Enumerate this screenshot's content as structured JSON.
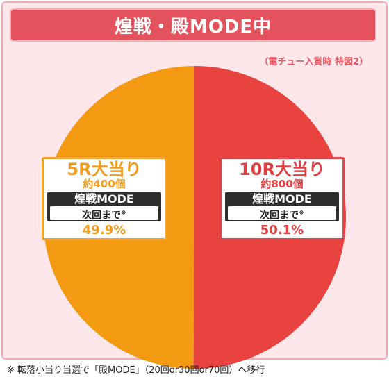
{
  "title": "煌戦・殿MODE中",
  "note": "（電チュー入賞時 特図2）",
  "footnote": "※ 転落小当り当選で「殿MODE」（20回or30回or70回）へ移行",
  "colors": {
    "accent": "#e4525d",
    "left_slice": "#f39a12",
    "right_slice": "#e8433f",
    "background": "#fde7ea"
  },
  "chart_data": {
    "type": "pie",
    "title": "煌戦・殿MODE中",
    "slices": [
      {
        "round": "5R大当り",
        "balls": "約400個",
        "mode": "煌戦MODE",
        "continue": "次回まで",
        "continue_mark": "※",
        "percent_label": "49.9%",
        "value": 49.9,
        "color": "#f39a12"
      },
      {
        "round": "10R大当り",
        "balls": "約800個",
        "mode": "煌戦MODE",
        "continue": "次回まで",
        "continue_mark": "※",
        "percent_label": "50.1%",
        "value": 50.1,
        "color": "#e8433f"
      }
    ]
  }
}
